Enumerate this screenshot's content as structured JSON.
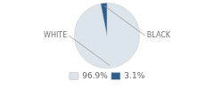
{
  "chart_data": {
    "type": "pie",
    "categories": [
      "WHITE",
      "BLACK"
    ],
    "values": [
      96.9,
      3.1
    ],
    "value_labels": [
      "96.9%",
      "3.1%"
    ],
    "colors": [
      "#dce4ec",
      "#2e5f8a"
    ],
    "legend": "bottom"
  }
}
